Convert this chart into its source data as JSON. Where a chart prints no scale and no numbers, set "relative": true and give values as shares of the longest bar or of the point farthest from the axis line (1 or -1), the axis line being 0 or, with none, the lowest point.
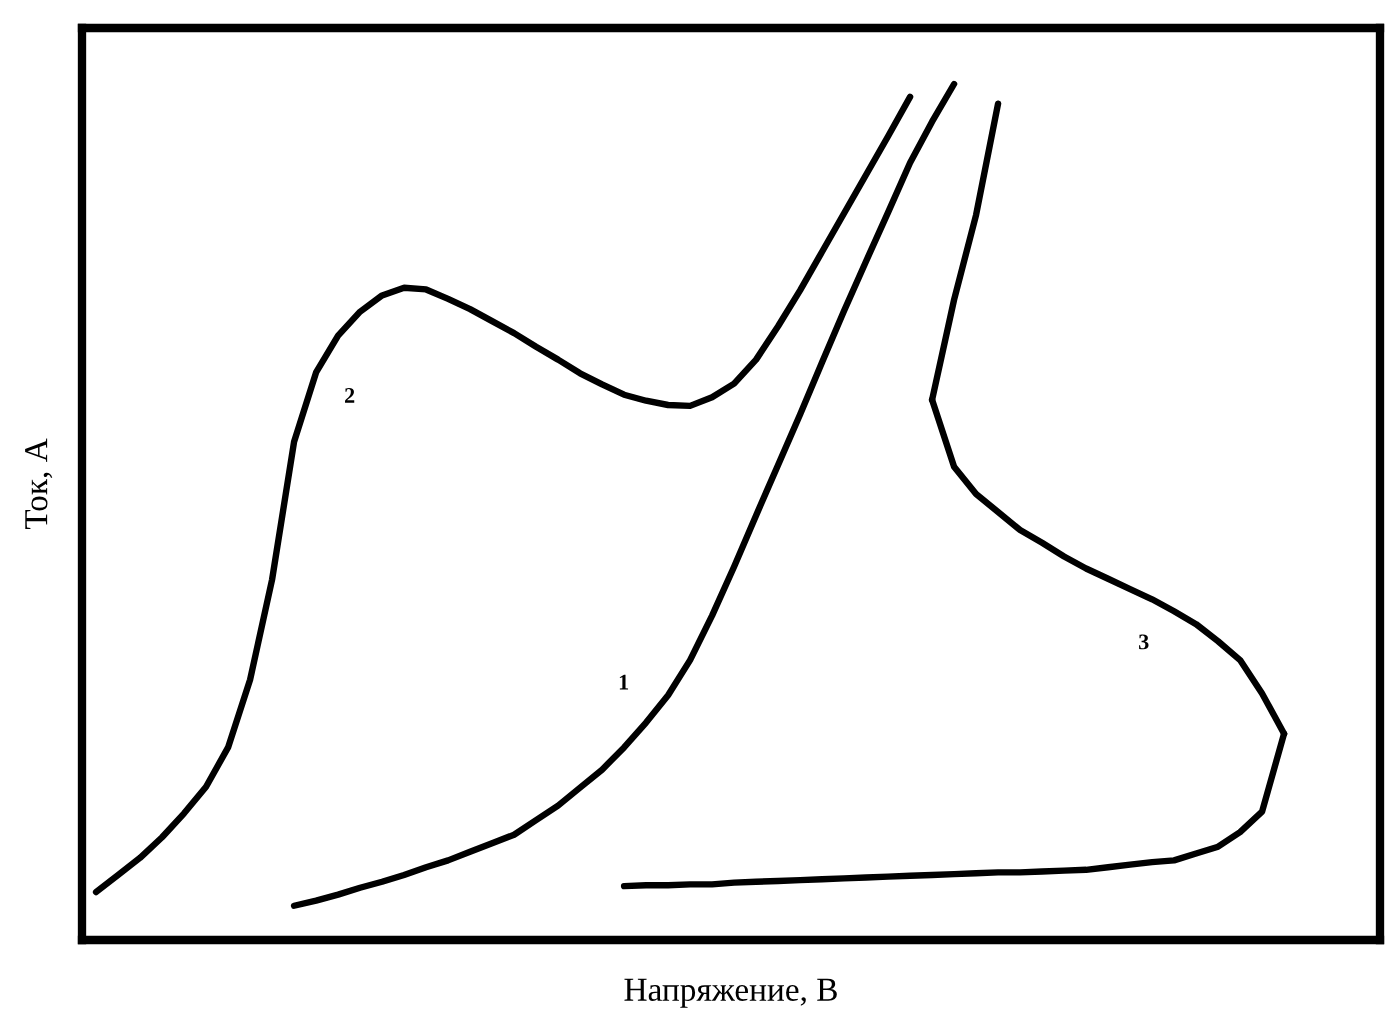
{
  "chart_data": {
    "type": "line",
    "relative": true,
    "xlabel": "Напряжение, В",
    "ylabel": "Ток, А",
    "categories": [
      null,
      null,
      null,
      null,
      null,
      null,
      null,
      null,
      null,
      null,
      null,
      null,
      null,
      null,
      null,
      null,
      null,
      null,
      null,
      null,
      null,
      null,
      null,
      null,
      null,
      null,
      null,
      null,
      null,
      null,
      null,
      null,
      null,
      null,
      null,
      null,
      null,
      null,
      null,
      null,
      null,
      null,
      null,
      null,
      null,
      null,
      null,
      null,
      null,
      null,
      null,
      null,
      null,
      null,
      null
    ],
    "series": [
      {
        "name": "1",
        "color": "#000000",
        "values": [
          null,
          null,
          null,
          null,
          null,
          null,
          null,
          null,
          null,
          0.04,
          0.046,
          0.053,
          0.061,
          0.068,
          0.076,
          0.085,
          0.093,
          0.103,
          0.113,
          0.123,
          0.14,
          0.157,
          0.178,
          0.199,
          0.225,
          0.254,
          0.286,
          0.327,
          0.379,
          0.436,
          0.496,
          0.555,
          0.614,
          0.675,
          0.735,
          0.793,
          0.85,
          0.908,
          0.956,
          1.0,
          null,
          null,
          null,
          null,
          null,
          null,
          null,
          null,
          null,
          null,
          null,
          null,
          null,
          null,
          null
        ]
      },
      {
        "name": "2",
        "color": "#000000",
        "values": [
          0.056,
          0.076,
          0.096,
          0.12,
          0.148,
          0.179,
          0.225,
          0.304,
          0.421,
          0.582,
          0.663,
          0.706,
          0.734,
          0.753,
          0.762,
          0.76,
          0.749,
          0.737,
          0.723,
          0.709,
          0.693,
          0.678,
          0.662,
          0.649,
          0.637,
          0.63,
          0.625,
          0.624,
          0.634,
          0.65,
          0.678,
          0.717,
          0.759,
          0.804,
          0.849,
          0.894,
          0.939,
          0.985,
          null,
          null,
          null,
          null,
          null,
          null,
          null,
          null,
          null,
          null,
          null,
          null,
          null,
          null,
          null,
          null,
          null
        ]
      },
      {
        "name": "3",
        "color": "#000000",
        "values": [
          null,
          null,
          null,
          null,
          null,
          null,
          null,
          null,
          null,
          null,
          null,
          null,
          null,
          null,
          null,
          null,
          null,
          null,
          null,
          null,
          null,
          null,
          null,
          null,
          null,
          null,
          null,
          null,
          null,
          null,
          null,
          null,
          null,
          null,
          null,
          null,
          null,
          null,
          0.631,
          0.553,
          0.521,
          0.5,
          0.479,
          0.464,
          0.448,
          0.434,
          0.422,
          0.41,
          0.398,
          0.384,
          0.369,
          0.349,
          0.327,
          0.288,
          0.241
        ]
      },
      {
        "color": "#000000",
        "values": [
          null,
          null,
          null,
          null,
          null,
          null,
          null,
          null,
          null,
          null,
          null,
          null,
          null,
          null,
          null,
          null,
          null,
          null,
          null,
          null,
          null,
          null,
          null,
          null,
          null,
          null,
          null,
          null,
          null,
          null,
          null,
          null,
          null,
          null,
          null,
          null,
          null,
          null,
          0.631,
          0.748,
          0.847,
          0.977,
          null,
          null,
          null,
          null,
          null,
          null,
          null,
          null,
          null,
          null,
          null,
          null,
          null
        ]
      },
      {
        "color": "#000000",
        "values": [
          null,
          null,
          null,
          null,
          null,
          null,
          null,
          null,
          null,
          null,
          null,
          null,
          null,
          null,
          null,
          null,
          null,
          null,
          null,
          null,
          null,
          null,
          null,
          null,
          0.063,
          0.064,
          0.064,
          0.065,
          0.065,
          0.067,
          0.068,
          0.069,
          0.07,
          0.071,
          0.072,
          0.073,
          0.074,
          0.075,
          0.076,
          0.077,
          0.078,
          0.079,
          0.079,
          0.08,
          0.081,
          0.082,
          0.085,
          0.088,
          0.091,
          0.093,
          0.101,
          0.109,
          0.126,
          0.15,
          0.241
        ]
      }
    ]
  }
}
